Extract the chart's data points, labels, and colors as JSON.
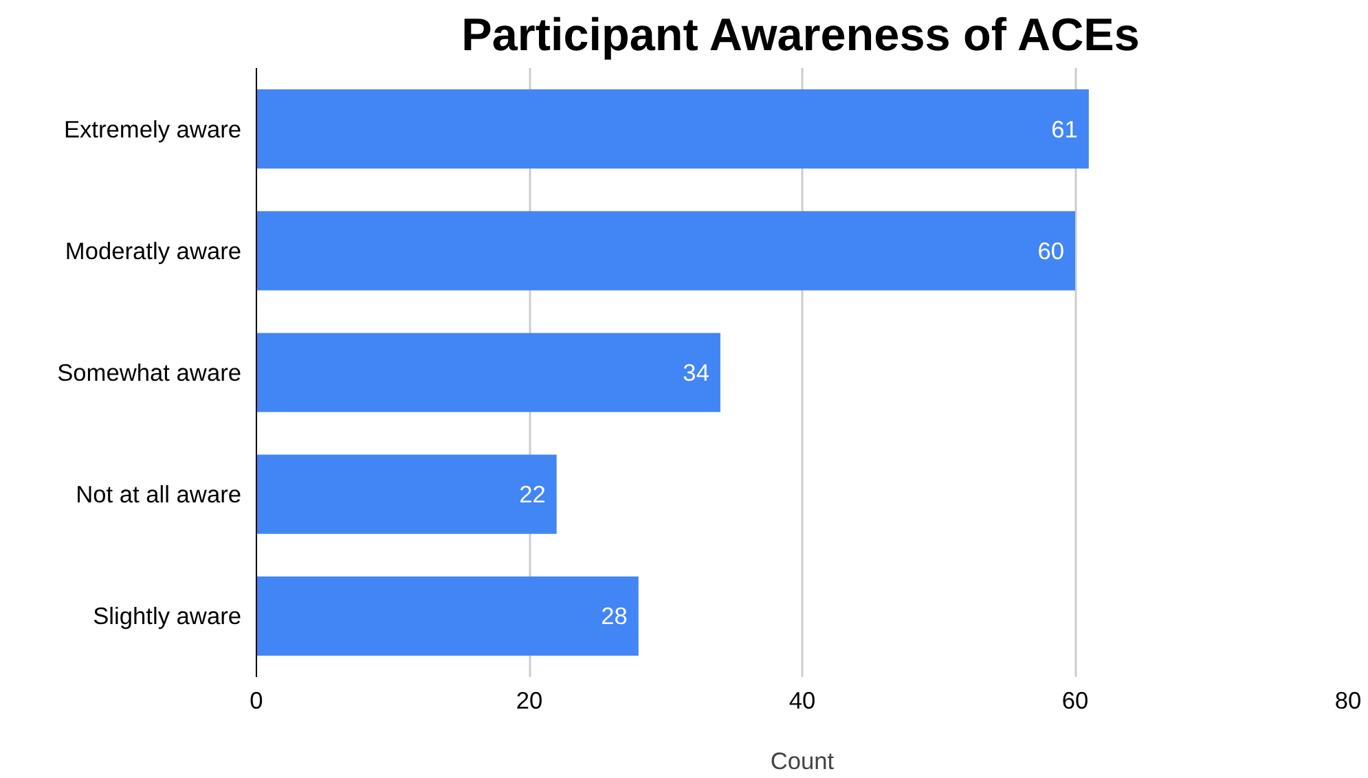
{
  "chart_data": {
    "type": "bar",
    "orientation": "horizontal",
    "title": "Participant Awareness of ACEs",
    "xlabel": "Count",
    "categories": [
      "Extremely aware",
      "Moderatly aware",
      "Somewhat aware",
      "Not at all aware",
      "Slightly aware"
    ],
    "values": [
      61,
      60,
      34,
      22,
      28
    ],
    "color": "#4285f4",
    "data_labels": true,
    "xlim": [
      0,
      80
    ],
    "xticks": [
      0,
      20,
      40,
      60,
      80
    ],
    "grid": "x",
    "legend": false
  }
}
